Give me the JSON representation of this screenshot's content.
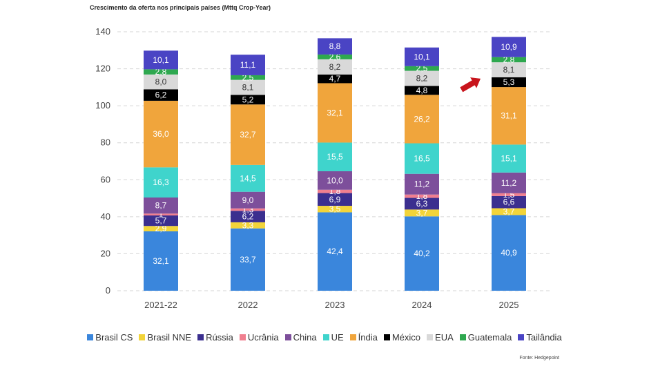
{
  "chart_data": {
    "type": "bar",
    "stacked": true,
    "title": "Crescimento da oferta nos principais países (Mttq Crop-Year)",
    "source": "Fonte: Hedgepoint",
    "categories": [
      "2021-22",
      "2022",
      "2023",
      "2024",
      "2025"
    ],
    "ylim": [
      0,
      140
    ],
    "yticks": [
      0,
      20,
      40,
      60,
      80,
      100,
      120,
      140
    ],
    "grid": true,
    "legend_position": "bottom",
    "series": [
      {
        "name": "Brasil CS",
        "color": "#3a86dc",
        "values": [
          32.1,
          33.7,
          42.4,
          40.2,
          40.9
        ],
        "labels": [
          "32,1",
          "33,7",
          "42,4",
          "40,2",
          "40,9"
        ]
      },
      {
        "name": "Brasil NNE",
        "color": "#f2d43a",
        "values": [
          2.9,
          3.3,
          3.5,
          3.7,
          3.7
        ],
        "labels": [
          "2,9",
          "3,3",
          "3,5",
          "3,7",
          "3,7"
        ]
      },
      {
        "name": "Rússia",
        "color": "#3b2f8f",
        "values": [
          5.7,
          6.2,
          6.9,
          6.3,
          6.6
        ],
        "labels": [
          "5,7",
          "6,2",
          "6,9",
          "6,3",
          "6,6"
        ]
      },
      {
        "name": "Ucrânia",
        "color": "#f07f8f",
        "values": [
          1.0,
          1.3,
          1.8,
          1.8,
          1.5
        ],
        "labels": [
          "1",
          "1,3",
          "1,8",
          "1,8",
          "1,5"
        ]
      },
      {
        "name": "China",
        "color": "#7d4f9b",
        "values": [
          8.7,
          9.0,
          10.0,
          11.2,
          11.2
        ],
        "labels": [
          "8,7",
          "9,0",
          "10,0",
          "11,2",
          "11,2"
        ]
      },
      {
        "name": "UE",
        "color": "#3fd4cc",
        "values": [
          16.3,
          14.5,
          15.5,
          16.5,
          15.1
        ],
        "labels": [
          "16,3",
          "14,5",
          "15,5",
          "16,5",
          "15,1"
        ]
      },
      {
        "name": "Índia",
        "color": "#f0a53c",
        "values": [
          36.0,
          32.7,
          32.1,
          26.2,
          31.1
        ],
        "labels": [
          "36,0",
          "32,7",
          "32,1",
          "26,2",
          "31,1"
        ]
      },
      {
        "name": "México",
        "color": "#000000",
        "values": [
          6.2,
          5.2,
          4.7,
          4.8,
          5.3
        ],
        "labels": [
          "6,2",
          "5,2",
          "4,7",
          "4,8",
          "5,3"
        ]
      },
      {
        "name": "EUA",
        "color": "#d9d9d9",
        "values": [
          8.0,
          8.1,
          8.2,
          8.2,
          8.1
        ],
        "labels": [
          "8,0",
          "8,1",
          "8,2",
          "8,2",
          "8,1"
        ]
      },
      {
        "name": "Guatemala",
        "color": "#2ea84f",
        "values": [
          2.8,
          2.5,
          2.6,
          2.5,
          2.8
        ],
        "labels": [
          "2,8",
          "2,5",
          "2,6",
          "2,5",
          "2,8"
        ]
      },
      {
        "name": "Tailândia",
        "color": "#4a44c4",
        "values": [
          10.1,
          11.1,
          8.8,
          10.1,
          10.9
        ],
        "labels": [
          "10,1",
          "11,1",
          "8,8",
          "10,1",
          "10,9"
        ]
      }
    ],
    "label_colors": {
      "Brasil CS": "#ffffff",
      "Brasil NNE": "#ffffff",
      "Rússia": "#ffffff",
      "Ucrânia": "#ffffff",
      "China": "#ffffff",
      "UE": "#ffffff",
      "Índia": "#ffffff",
      "México": "#ffffff",
      "EUA": "#333333",
      "Guatemala": "#ffffff",
      "Tailândia": "#ffffff"
    },
    "annotations": [
      {
        "type": "arrow",
        "color": "#c8141c",
        "category": "2025",
        "points_to": "México"
      }
    ]
  }
}
